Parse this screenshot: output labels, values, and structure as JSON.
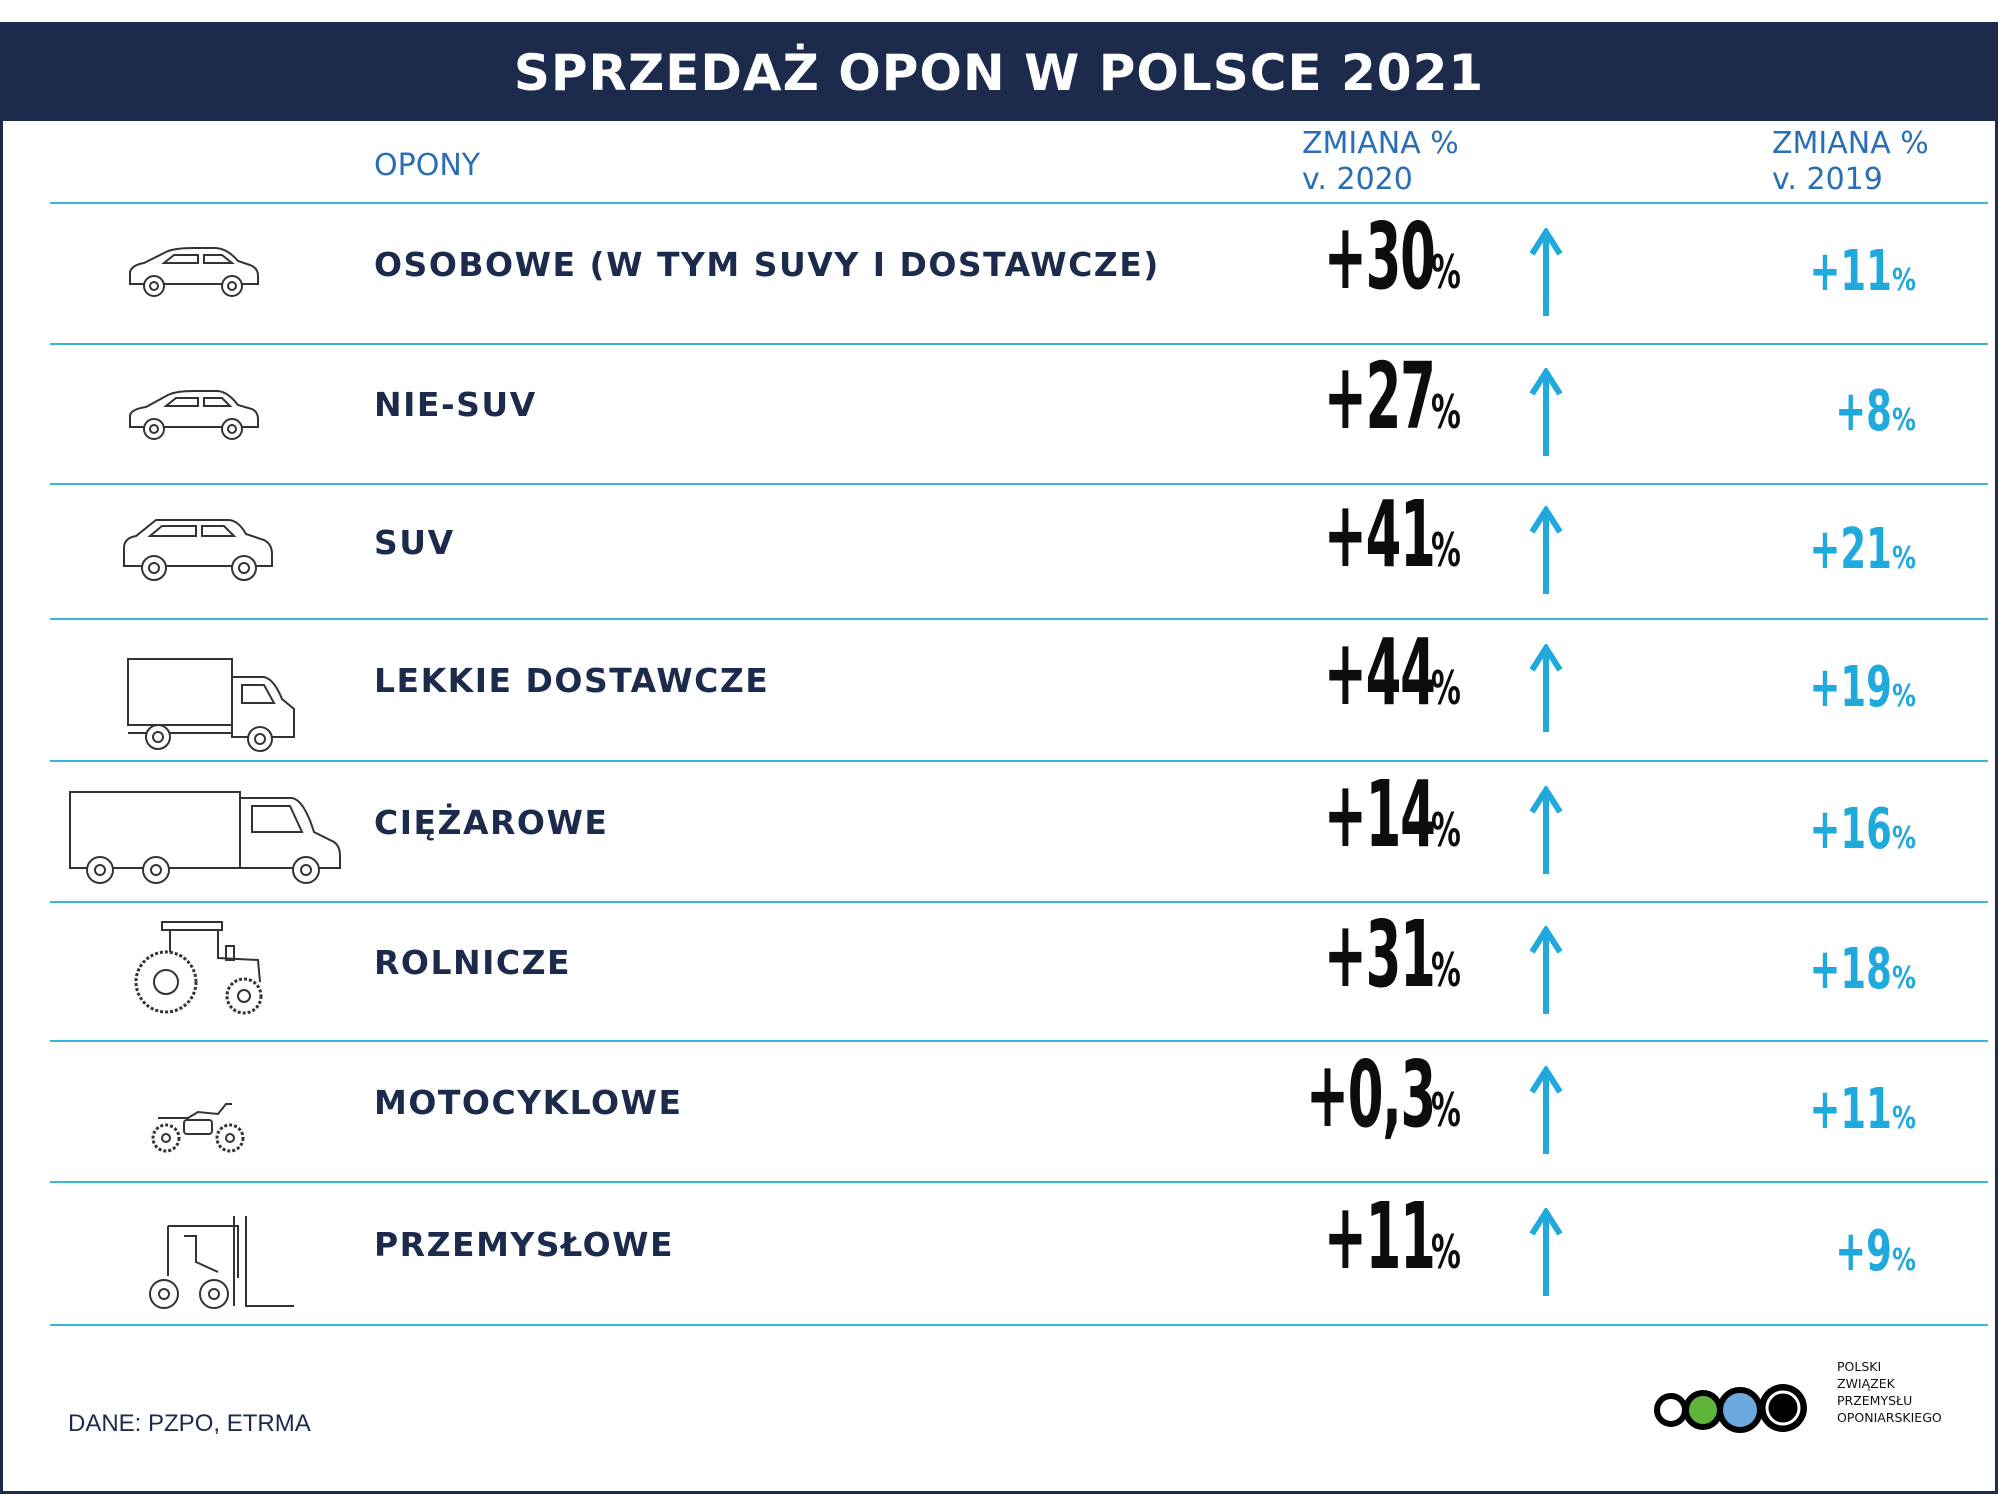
{
  "title": "SPRZEDAŻ OPON W POLSCE 2021",
  "columns": {
    "tyres": "OPONY",
    "change_2020_line1": "ZMIANA %",
    "change_2020_line2": "v. 2020",
    "change_2019_line1": "ZMIANA %",
    "change_2019_line2": "v. 2019"
  },
  "rows": [
    {
      "label": "OSOBOWE (W TYM SUVY I DOSTAWCZE)",
      "v2020": "+30",
      "v2019": "+11",
      "pct": "%",
      "icon": "car-icon"
    },
    {
      "label": "NIE-SUV",
      "v2020": "+27",
      "v2019": "+8",
      "pct": "%",
      "icon": "hatchback-icon"
    },
    {
      "label": "SUV",
      "v2020": "+41",
      "v2019": "+21",
      "pct": "%",
      "icon": "suv-icon"
    },
    {
      "label": "LEKKIE DOSTAWCZE",
      "v2020": "+44",
      "v2019": "+19",
      "pct": "%",
      "icon": "van-icon"
    },
    {
      "label": "CIĘŻAROWE",
      "v2020": "+14",
      "v2019": "+16",
      "pct": "%",
      "icon": "truck-icon"
    },
    {
      "label": "ROLNICZE",
      "v2020": "+31",
      "v2019": "+18",
      "pct": "%",
      "icon": "tractor-icon"
    },
    {
      "label": "MOTOCYKLOWE",
      "v2020": "+0,3",
      "v2019": "+11",
      "pct": "%",
      "icon": "motorcycle-icon"
    },
    {
      "label": "PRZEMYSŁOWE",
      "v2020": "+11",
      "v2019": "+9",
      "pct": "%",
      "icon": "forklift-icon"
    }
  ],
  "source": "DANE: PZPO, ETRMA",
  "logo": {
    "line1": "POLSKI",
    "line2": "ZWIĄZEK",
    "line3": "PRZEMYSŁU",
    "line4": "OPONIARSKIEGO"
  },
  "colors": {
    "navy": "#1c2b4c",
    "accent": "#1fa9dc",
    "divider": "#35b8dc",
    "logo_green": "#5fb43a",
    "logo_blue": "#6aa8de"
  },
  "chart_data": {
    "type": "table",
    "title": "SPRZEDAŻ OPON W POLSCE 2021",
    "categories": [
      "OSOBOWE (W TYM SUVY I DOSTAWCZE)",
      "NIE-SUV",
      "SUV",
      "LEKKIE DOSTAWCZE",
      "CIĘŻAROWE",
      "ROLNICZE",
      "MOTOCYKLOWE",
      "PRZEMYSŁOWE"
    ],
    "series": [
      {
        "name": "ZMIANA % v. 2020",
        "values": [
          30,
          27,
          41,
          44,
          14,
          31,
          0.3,
          11
        ]
      },
      {
        "name": "ZMIANA % v. 2019",
        "values": [
          11,
          8,
          21,
          19,
          16,
          18,
          11,
          9
        ]
      }
    ]
  }
}
